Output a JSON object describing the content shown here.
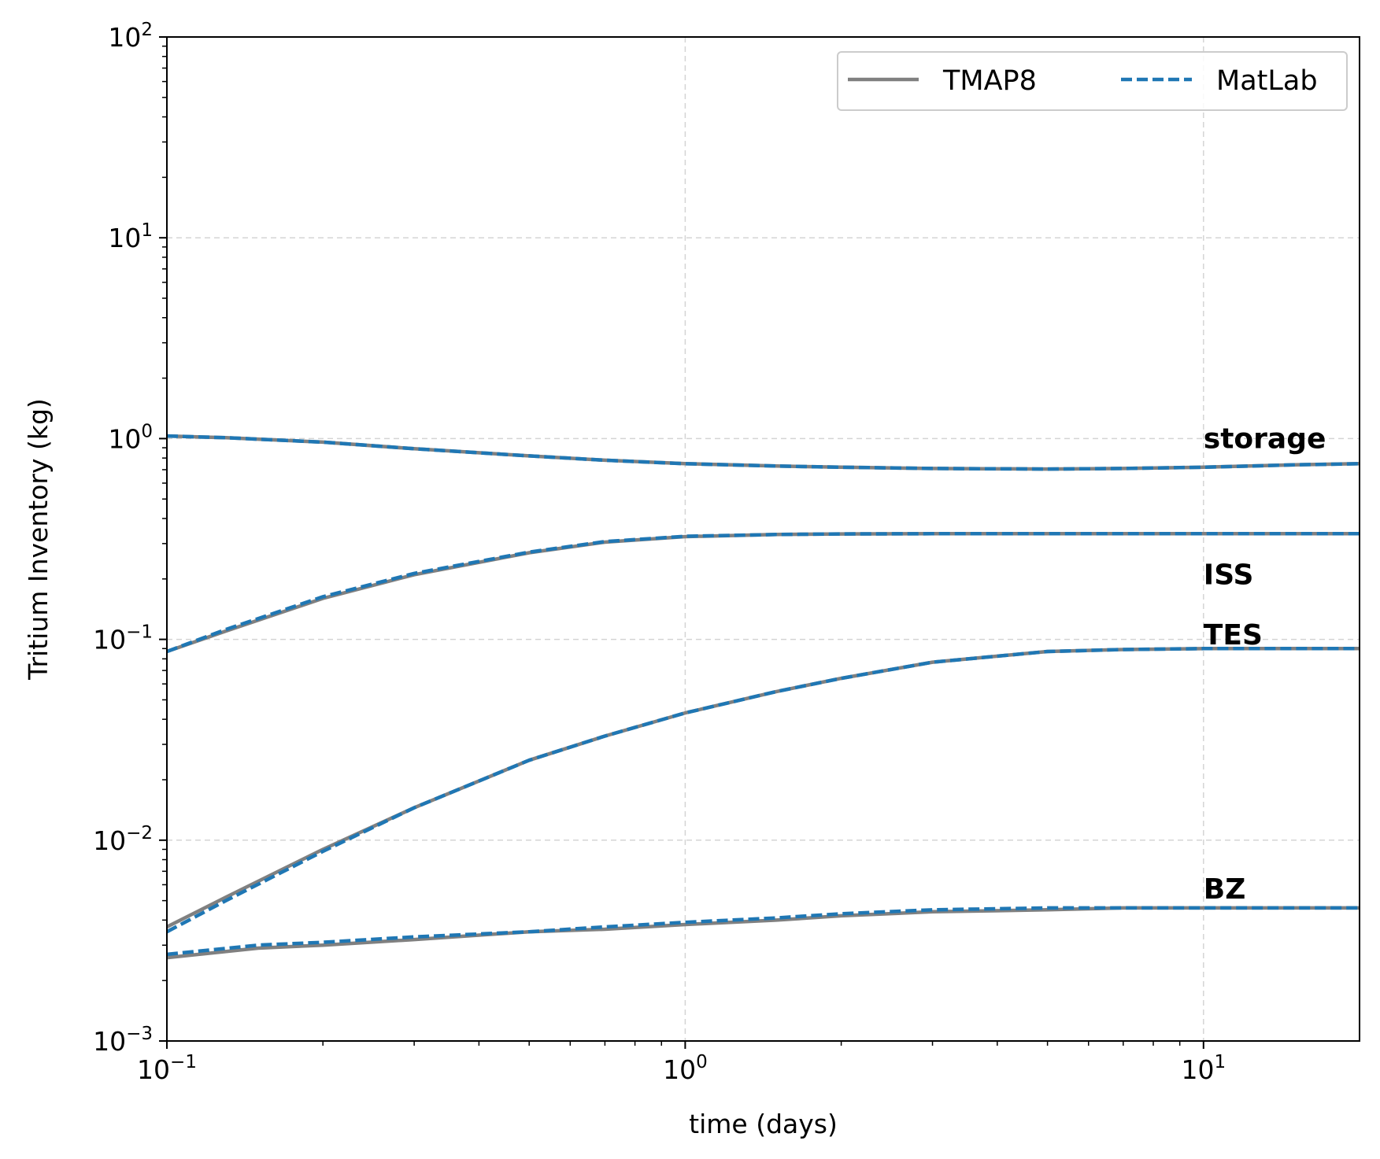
{
  "chart_data": {
    "type": "line",
    "xlabel": "time (days)",
    "ylabel": "Tritium Inventory (kg)",
    "xscale": "log",
    "yscale": "log",
    "xlim": [
      0.1,
      20
    ],
    "ylim": [
      0.001,
      100
    ],
    "grid": true,
    "legend_position": "top-right",
    "x_ticks": [
      {
        "base": "10",
        "exp": "−1",
        "value": 0.1
      },
      {
        "base": "10",
        "exp": "0",
        "value": 1
      },
      {
        "base": "10",
        "exp": "1",
        "value": 10
      }
    ],
    "y_ticks": [
      {
        "base": "10",
        "exp": "−3",
        "value": 0.001
      },
      {
        "base": "10",
        "exp": "−2",
        "value": 0.01
      },
      {
        "base": "10",
        "exp": "−1",
        "value": 0.1
      },
      {
        "base": "10",
        "exp": "0",
        "value": 1
      },
      {
        "base": "10",
        "exp": "1",
        "value": 10
      },
      {
        "base": "10",
        "exp": "2",
        "value": 100
      }
    ],
    "legend": [
      {
        "label": "TMAP8",
        "color": "#808080",
        "style": "solid"
      },
      {
        "label": "MatLab",
        "color": "#1f77b4",
        "style": "dashed"
      }
    ],
    "annotations": [
      {
        "text": "storage",
        "x": 10,
        "y": 1.0
      },
      {
        "text": "ISS",
        "x": 10,
        "y": 0.21
      },
      {
        "text": "TES",
        "x": 10,
        "y": 0.105
      },
      {
        "text": "BZ",
        "x": 10,
        "y": 0.0057
      }
    ],
    "components": [
      {
        "name": "storage",
        "x": [
          0.1,
          0.13,
          0.2,
          0.3,
          0.5,
          0.7,
          1.0,
          1.5,
          2,
          3,
          5,
          7,
          10,
          15,
          20
        ],
        "tmap8": [
          1.03,
          1.01,
          0.96,
          0.89,
          0.82,
          0.78,
          0.75,
          0.73,
          0.72,
          0.71,
          0.705,
          0.71,
          0.72,
          0.74,
          0.75
        ],
        "matlab": [
          1.03,
          1.01,
          0.96,
          0.89,
          0.82,
          0.78,
          0.75,
          0.73,
          0.72,
          0.71,
          0.705,
          0.71,
          0.72,
          0.74,
          0.75
        ]
      },
      {
        "name": "ISS",
        "x": [
          0.1,
          0.13,
          0.2,
          0.3,
          0.5,
          0.7,
          1.0,
          1.5,
          2,
          3,
          5,
          10,
          20
        ],
        "tmap8": [
          0.087,
          0.11,
          0.16,
          0.21,
          0.27,
          0.305,
          0.325,
          0.333,
          0.335,
          0.336,
          0.336,
          0.336,
          0.336
        ],
        "matlab": [
          0.087,
          0.112,
          0.163,
          0.213,
          0.272,
          0.307,
          0.326,
          0.333,
          0.335,
          0.336,
          0.336,
          0.336,
          0.336
        ]
      },
      {
        "name": "TES",
        "x": [
          0.1,
          0.13,
          0.2,
          0.3,
          0.5,
          0.7,
          1.0,
          1.5,
          2,
          3,
          5,
          7,
          10,
          20
        ],
        "tmap8": [
          0.0037,
          0.0052,
          0.009,
          0.0145,
          0.025,
          0.033,
          0.043,
          0.055,
          0.064,
          0.077,
          0.087,
          0.089,
          0.09,
          0.09
        ],
        "matlab": [
          0.0035,
          0.005,
          0.0088,
          0.0145,
          0.025,
          0.033,
          0.043,
          0.055,
          0.064,
          0.077,
          0.087,
          0.089,
          0.09,
          0.09
        ]
      },
      {
        "name": "BZ",
        "x": [
          0.1,
          0.15,
          0.2,
          0.3,
          0.5,
          0.7,
          1.0,
          1.5,
          2,
          3,
          5,
          7,
          10,
          20
        ],
        "tmap8": [
          0.0026,
          0.0029,
          0.003,
          0.0032,
          0.0035,
          0.0036,
          0.0038,
          0.004,
          0.0042,
          0.0044,
          0.0045,
          0.0046,
          0.0046,
          0.0046
        ],
        "matlab": [
          0.0027,
          0.003,
          0.0031,
          0.0033,
          0.0035,
          0.0037,
          0.0039,
          0.0041,
          0.0043,
          0.0045,
          0.0046,
          0.0046,
          0.0046,
          0.0046
        ]
      }
    ]
  }
}
